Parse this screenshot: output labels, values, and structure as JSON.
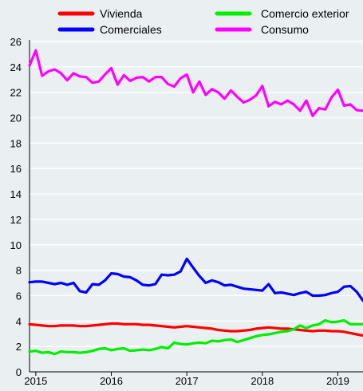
{
  "chart_data": {
    "type": "line",
    "title": "",
    "xlabel": "",
    "ylabel": "",
    "ylim": [
      0,
      26
    ],
    "yticks": [
      0,
      2,
      4,
      6,
      8,
      10,
      12,
      14,
      16,
      18,
      20,
      22,
      24,
      26
    ],
    "xlim": [
      "2014-12",
      "2019-05"
    ],
    "xticks": [
      {
        "date": "2015-01",
        "label": "2015"
      },
      {
        "date": "2016-01",
        "label": "2016"
      },
      {
        "date": "2017-01",
        "label": "2017"
      },
      {
        "date": "2018-01",
        "label": "2018"
      },
      {
        "date": "2019-01",
        "label": "2019"
      }
    ],
    "grid": {
      "horizontal": true,
      "vertical": false
    },
    "legend_position": "top",
    "series": [
      {
        "name": "Vivienda",
        "color": "#ff0000",
        "points": [
          [
            "2014-12",
            3.75
          ],
          [
            "2015-01",
            3.7
          ],
          [
            "2015-02",
            3.65
          ],
          [
            "2015-03",
            3.6
          ],
          [
            "2015-04",
            3.6
          ],
          [
            "2015-05",
            3.65
          ],
          [
            "2015-06",
            3.65
          ],
          [
            "2015-07",
            3.65
          ],
          [
            "2015-08",
            3.6
          ],
          [
            "2015-09",
            3.6
          ],
          [
            "2015-10",
            3.65
          ],
          [
            "2015-11",
            3.7
          ],
          [
            "2015-12",
            3.75
          ],
          [
            "2016-01",
            3.8
          ],
          [
            "2016-02",
            3.8
          ],
          [
            "2016-03",
            3.75
          ],
          [
            "2016-04",
            3.75
          ],
          [
            "2016-05",
            3.75
          ],
          [
            "2016-06",
            3.7
          ],
          [
            "2016-07",
            3.7
          ],
          [
            "2016-08",
            3.65
          ],
          [
            "2016-09",
            3.6
          ],
          [
            "2016-10",
            3.55
          ],
          [
            "2016-11",
            3.5
          ],
          [
            "2016-12",
            3.55
          ],
          [
            "2017-01",
            3.6
          ],
          [
            "2017-02",
            3.55
          ],
          [
            "2017-03",
            3.5
          ],
          [
            "2017-04",
            3.45
          ],
          [
            "2017-05",
            3.4
          ],
          [
            "2017-06",
            3.3
          ],
          [
            "2017-07",
            3.25
          ],
          [
            "2017-08",
            3.2
          ],
          [
            "2017-09",
            3.2
          ],
          [
            "2017-10",
            3.25
          ],
          [
            "2017-11",
            3.3
          ],
          [
            "2017-12",
            3.4
          ],
          [
            "2018-01",
            3.45
          ],
          [
            "2018-02",
            3.5
          ],
          [
            "2018-03",
            3.45
          ],
          [
            "2018-04",
            3.4
          ],
          [
            "2018-05",
            3.4
          ],
          [
            "2018-06",
            3.35
          ],
          [
            "2018-07",
            3.3
          ],
          [
            "2018-08",
            3.25
          ],
          [
            "2018-09",
            3.2
          ],
          [
            "2018-10",
            3.25
          ],
          [
            "2018-11",
            3.25
          ],
          [
            "2018-12",
            3.2
          ],
          [
            "2019-01",
            3.2
          ],
          [
            "2019-02",
            3.15
          ],
          [
            "2019-03",
            3.05
          ],
          [
            "2019-04",
            2.95
          ],
          [
            "2019-05",
            2.85
          ]
        ]
      },
      {
        "name": "Comerciales",
        "color": "#0000ff",
        "points": [
          [
            "2014-12",
            7.05
          ],
          [
            "2015-01",
            7.1
          ],
          [
            "2015-02",
            7.1
          ],
          [
            "2015-03",
            7.0
          ],
          [
            "2015-04",
            6.9
          ],
          [
            "2015-05",
            7.0
          ],
          [
            "2015-06",
            6.85
          ],
          [
            "2015-07",
            7.0
          ],
          [
            "2015-08",
            6.35
          ],
          [
            "2015-09",
            6.25
          ],
          [
            "2015-10",
            6.9
          ],
          [
            "2015-11",
            6.85
          ],
          [
            "2015-12",
            7.2
          ],
          [
            "2016-01",
            7.75
          ],
          [
            "2016-02",
            7.7
          ],
          [
            "2016-03",
            7.5
          ],
          [
            "2016-04",
            7.45
          ],
          [
            "2016-05",
            7.2
          ],
          [
            "2016-06",
            6.85
          ],
          [
            "2016-07",
            6.8
          ],
          [
            "2016-08",
            6.9
          ],
          [
            "2016-09",
            7.65
          ],
          [
            "2016-10",
            7.6
          ],
          [
            "2016-11",
            7.65
          ],
          [
            "2016-12",
            7.9
          ],
          [
            "2017-01",
            8.9
          ],
          [
            "2017-02",
            8.2
          ],
          [
            "2017-03",
            7.55
          ],
          [
            "2017-04",
            7.0
          ],
          [
            "2017-05",
            7.2
          ],
          [
            "2017-06",
            7.05
          ],
          [
            "2017-07",
            6.8
          ],
          [
            "2017-08",
            6.85
          ],
          [
            "2017-09",
            6.7
          ],
          [
            "2017-10",
            6.55
          ],
          [
            "2017-11",
            6.5
          ],
          [
            "2017-12",
            6.45
          ],
          [
            "2018-01",
            6.4
          ],
          [
            "2018-02",
            6.9
          ],
          [
            "2018-03",
            6.2
          ],
          [
            "2018-04",
            6.25
          ],
          [
            "2018-05",
            6.15
          ],
          [
            "2018-06",
            6.05
          ],
          [
            "2018-07",
            6.2
          ],
          [
            "2018-08",
            6.3
          ],
          [
            "2018-09",
            6.0
          ],
          [
            "2018-10",
            6.0
          ],
          [
            "2018-11",
            6.05
          ],
          [
            "2018-12",
            6.2
          ],
          [
            "2019-01",
            6.3
          ],
          [
            "2019-02",
            6.7
          ],
          [
            "2019-03",
            6.75
          ],
          [
            "2019-04",
            6.3
          ],
          [
            "2019-05",
            5.6
          ]
        ]
      },
      {
        "name": "Comercio exterior",
        "color": "#00ee00",
        "points": [
          [
            "2014-12",
            1.6
          ],
          [
            "2015-01",
            1.65
          ],
          [
            "2015-02",
            1.5
          ],
          [
            "2015-03",
            1.55
          ],
          [
            "2015-04",
            1.4
          ],
          [
            "2015-05",
            1.6
          ],
          [
            "2015-06",
            1.55
          ],
          [
            "2015-07",
            1.55
          ],
          [
            "2015-08",
            1.5
          ],
          [
            "2015-09",
            1.55
          ],
          [
            "2015-10",
            1.65
          ],
          [
            "2015-11",
            1.8
          ],
          [
            "2015-12",
            1.85
          ],
          [
            "2016-01",
            1.7
          ],
          [
            "2016-02",
            1.8
          ],
          [
            "2016-03",
            1.85
          ],
          [
            "2016-04",
            1.65
          ],
          [
            "2016-05",
            1.7
          ],
          [
            "2016-06",
            1.75
          ],
          [
            "2016-07",
            1.7
          ],
          [
            "2016-08",
            1.8
          ],
          [
            "2016-09",
            1.95
          ],
          [
            "2016-10",
            1.85
          ],
          [
            "2016-11",
            2.3
          ],
          [
            "2016-12",
            2.2
          ],
          [
            "2017-01",
            2.15
          ],
          [
            "2017-02",
            2.25
          ],
          [
            "2017-03",
            2.3
          ],
          [
            "2017-04",
            2.25
          ],
          [
            "2017-05",
            2.45
          ],
          [
            "2017-06",
            2.4
          ],
          [
            "2017-07",
            2.5
          ],
          [
            "2017-08",
            2.55
          ],
          [
            "2017-09",
            2.35
          ],
          [
            "2017-10",
            2.5
          ],
          [
            "2017-11",
            2.65
          ],
          [
            "2017-12",
            2.8
          ],
          [
            "2018-01",
            2.9
          ],
          [
            "2018-02",
            2.95
          ],
          [
            "2018-03",
            3.05
          ],
          [
            "2018-04",
            3.15
          ],
          [
            "2018-05",
            3.2
          ],
          [
            "2018-06",
            3.35
          ],
          [
            "2018-07",
            3.65
          ],
          [
            "2018-08",
            3.45
          ],
          [
            "2018-09",
            3.65
          ],
          [
            "2018-10",
            3.75
          ],
          [
            "2018-11",
            4.05
          ],
          [
            "2018-12",
            3.9
          ],
          [
            "2019-01",
            3.95
          ],
          [
            "2019-02",
            4.05
          ],
          [
            "2019-03",
            3.75
          ],
          [
            "2019-04",
            3.75
          ],
          [
            "2019-05",
            3.75
          ]
        ]
      },
      {
        "name": "Consumo",
        "color": "#ff00ff",
        "points": [
          [
            "2014-12",
            24.1
          ],
          [
            "2015-01",
            25.3
          ],
          [
            "2015-02",
            23.3
          ],
          [
            "2015-03",
            23.65
          ],
          [
            "2015-04",
            23.8
          ],
          [
            "2015-05",
            23.5
          ],
          [
            "2015-06",
            22.95
          ],
          [
            "2015-07",
            23.5
          ],
          [
            "2015-08",
            23.25
          ],
          [
            "2015-09",
            23.2
          ],
          [
            "2015-10",
            22.75
          ],
          [
            "2015-11",
            22.85
          ],
          [
            "2015-12",
            23.4
          ],
          [
            "2016-01",
            23.9
          ],
          [
            "2016-02",
            22.6
          ],
          [
            "2016-03",
            23.35
          ],
          [
            "2016-04",
            22.9
          ],
          [
            "2016-05",
            23.15
          ],
          [
            "2016-06",
            23.2
          ],
          [
            "2016-07",
            22.85
          ],
          [
            "2016-08",
            23.2
          ],
          [
            "2016-09",
            23.2
          ],
          [
            "2016-10",
            22.65
          ],
          [
            "2016-11",
            22.45
          ],
          [
            "2016-12",
            23.1
          ],
          [
            "2017-01",
            23.4
          ],
          [
            "2017-02",
            22.0
          ],
          [
            "2017-03",
            22.85
          ],
          [
            "2017-04",
            21.8
          ],
          [
            "2017-05",
            22.25
          ],
          [
            "2017-06",
            22.0
          ],
          [
            "2017-07",
            21.5
          ],
          [
            "2017-08",
            22.15
          ],
          [
            "2017-09",
            21.65
          ],
          [
            "2017-10",
            21.2
          ],
          [
            "2017-11",
            21.4
          ],
          [
            "2017-12",
            21.75
          ],
          [
            "2018-01",
            22.5
          ],
          [
            "2018-02",
            20.9
          ],
          [
            "2018-03",
            21.25
          ],
          [
            "2018-04",
            21.05
          ],
          [
            "2018-05",
            21.35
          ],
          [
            "2018-06",
            21.05
          ],
          [
            "2018-07",
            20.55
          ],
          [
            "2018-08",
            21.35
          ],
          [
            "2018-09",
            20.15
          ],
          [
            "2018-10",
            20.75
          ],
          [
            "2018-11",
            20.65
          ],
          [
            "2018-12",
            21.6
          ],
          [
            "2019-01",
            22.2
          ],
          [
            "2019-02",
            20.95
          ],
          [
            "2019-03",
            21.05
          ],
          [
            "2019-04",
            20.6
          ],
          [
            "2019-05",
            20.55
          ]
        ]
      }
    ]
  }
}
